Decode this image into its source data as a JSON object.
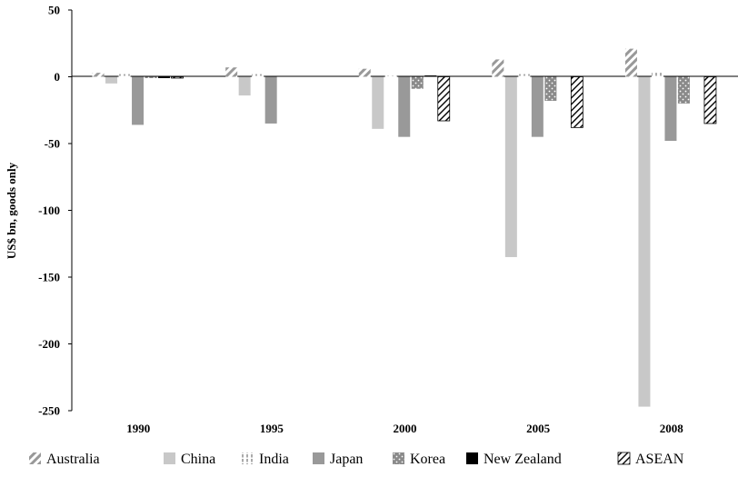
{
  "chart_data": {
    "type": "bar",
    "title": "",
    "xlabel": "",
    "ylabel": "US$ bn, goods only",
    "ylim": [
      -250,
      50
    ],
    "yticks": [
      50,
      0,
      -50,
      -100,
      -150,
      -200,
      -250
    ],
    "categories": [
      "1990",
      "1995",
      "2000",
      "2005",
      "2008"
    ],
    "grid": false,
    "legend_position": "bottom",
    "series": [
      {
        "name": "Australia",
        "pattern": "diagonal-hatch",
        "color": "#999999",
        "values": [
          3,
          7,
          6,
          13,
          21
        ]
      },
      {
        "name": "China",
        "pattern": "solid",
        "color": "#c8c8c8",
        "values": [
          -5,
          -14,
          -39,
          -135,
          -247
        ]
      },
      {
        "name": "India",
        "pattern": "vertical-dash",
        "color": "#aaaaaa",
        "values": [
          2,
          2,
          1,
          2,
          3
        ]
      },
      {
        "name": "Japan",
        "pattern": "solid",
        "color": "#999999",
        "values": [
          -36,
          -35,
          -45,
          -45,
          -48
        ]
      },
      {
        "name": "Korea",
        "pattern": "dotted",
        "color": "#8a8a8a",
        "values": [
          -1,
          0,
          -9,
          -18,
          -20
        ]
      },
      {
        "name": "New Zealand",
        "pattern": "solid",
        "color": "#000000",
        "values": [
          -1,
          0,
          1,
          0,
          0
        ]
      },
      {
        "name": "ASEAN",
        "pattern": "cross-hatch-white",
        "color": "#000000",
        "values": [
          -1,
          0,
          -33,
          -38,
          -35
        ]
      }
    ]
  }
}
